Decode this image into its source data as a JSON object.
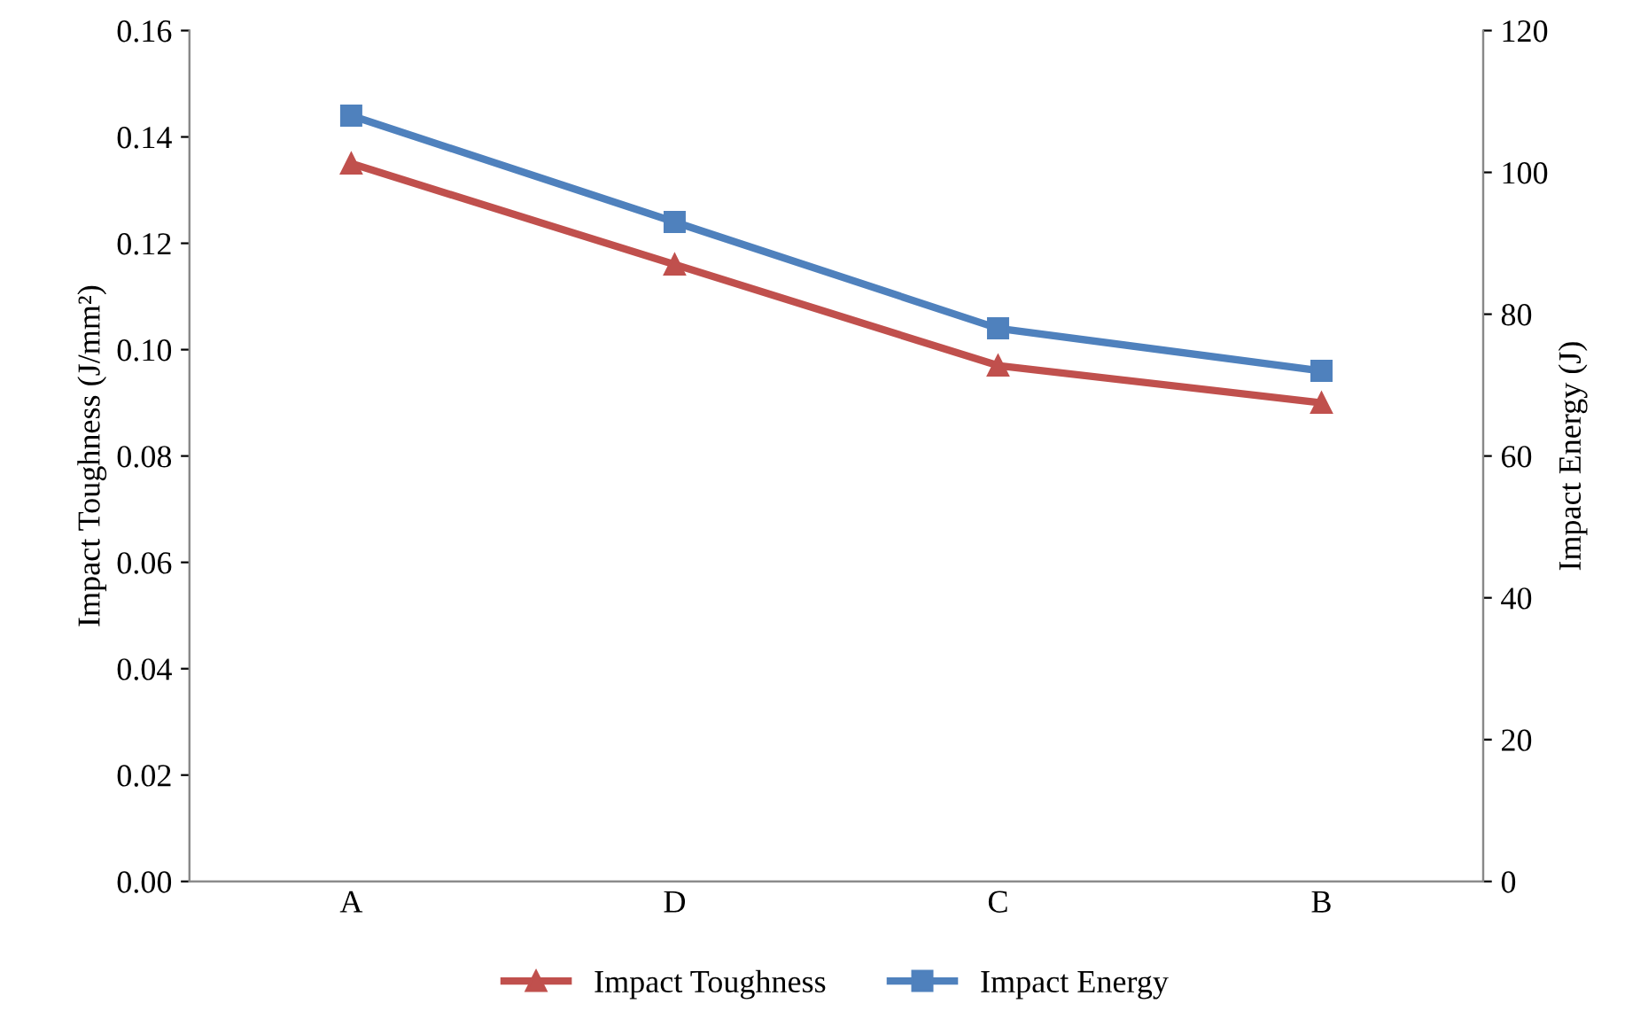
{
  "chart_data": {
    "type": "line",
    "categories": [
      "A",
      "D",
      "C",
      "B"
    ],
    "ylabel": "Impact Toughness (J/mm²)",
    "y2label": "Impact Energy (J)",
    "ylim": [
      0,
      0.16
    ],
    "yticks": [
      {
        "value": 0,
        "label": "0.00"
      },
      {
        "value": 0.02,
        "label": "0.02"
      },
      {
        "value": 0.04,
        "label": "0.04"
      },
      {
        "value": 0.06,
        "label": "0.06"
      },
      {
        "value": 0.08,
        "label": "0.08"
      },
      {
        "value": 0.1,
        "label": "0.10"
      },
      {
        "value": 0.12,
        "label": "0.12"
      },
      {
        "value": 0.14,
        "label": "0.14"
      },
      {
        "value": 0.16,
        "label": "0.16"
      }
    ],
    "y2lim": [
      0,
      120
    ],
    "y2ticks": [
      0,
      20,
      40,
      60,
      80,
      100,
      120
    ],
    "series": [
      {
        "name": "Impact Toughness",
        "color": "#c0504d",
        "marker": "triangle",
        "values": [
          0.135,
          0.116,
          0.097,
          0.09
        ]
      },
      {
        "name": "Impact Energy",
        "color": "#4f81bd",
        "marker": "square",
        "axis": "y2",
        "values": [
          108,
          93,
          78,
          72
        ]
      }
    ],
    "legend": "bottom",
    "grid": false
  }
}
